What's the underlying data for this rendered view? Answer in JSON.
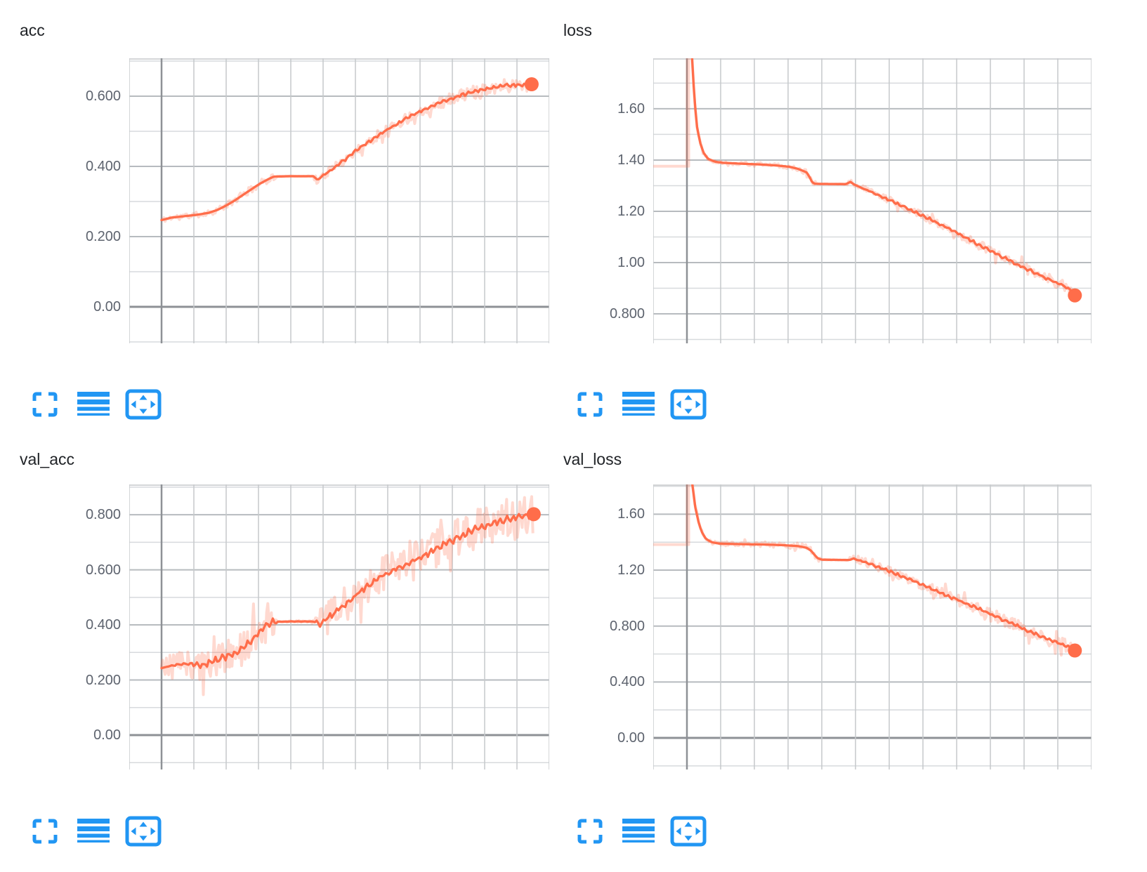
{
  "page": {
    "background": "#ffffff"
  },
  "accent": {
    "icon_blue": "#2196f3",
    "series_orange": "#ff6d4a"
  },
  "toolbar": {
    "icon_names": [
      "expand-card",
      "toggle-log-scale",
      "fit-domain-to-data"
    ]
  },
  "chart_data": [
    {
      "type": "line",
      "title": "acc",
      "color": "#ff6d4a",
      "legend": "smoothed line with faded raw series, end-point dot",
      "xlabel": "",
      "ylabel": "",
      "x_tick_labels_visible": false,
      "ylim": [
        -0.104,
        0.708
      ],
      "minor_step": 0.1,
      "major_step": 0.2,
      "yticks": [
        {
          "v": 0.6,
          "label": "0.600"
        },
        {
          "v": 0.4,
          "label": "0.400"
        },
        {
          "v": 0.2,
          "label": "0.200"
        },
        {
          "v": 0.0,
          "label": "0.00"
        }
      ],
      "axis_x_frac": 0.077,
      "flat_range": [
        0.35,
        0.44
      ],
      "end_dot_value": 0.634,
      "noise": [
        0.007,
        0.02
      ],
      "zig": 0.005,
      "zig_start": 0.42,
      "seed": 11,
      "points": [
        [
          0.077,
          0.247
        ],
        [
          0.1,
          0.254
        ],
        [
          0.13,
          0.258
        ],
        [
          0.16,
          0.262
        ],
        [
          0.19,
          0.268
        ],
        [
          0.21,
          0.276
        ],
        [
          0.23,
          0.288
        ],
        [
          0.25,
          0.302
        ],
        [
          0.27,
          0.318
        ],
        [
          0.29,
          0.334
        ],
        [
          0.31,
          0.35
        ],
        [
          0.33,
          0.363
        ],
        [
          0.344,
          0.371
        ],
        [
          0.38,
          0.372
        ],
        [
          0.42,
          0.372
        ],
        [
          0.44,
          0.372
        ],
        [
          0.447,
          0.361
        ],
        [
          0.46,
          0.372
        ],
        [
          0.48,
          0.39
        ],
        [
          0.5,
          0.408
        ],
        [
          0.52,
          0.426
        ],
        [
          0.54,
          0.444
        ],
        [
          0.56,
          0.462
        ],
        [
          0.58,
          0.478
        ],
        [
          0.6,
          0.494
        ],
        [
          0.62,
          0.509
        ],
        [
          0.64,
          0.523
        ],
        [
          0.66,
          0.536
        ],
        [
          0.68,
          0.549
        ],
        [
          0.7,
          0.56
        ],
        [
          0.72,
          0.571
        ],
        [
          0.74,
          0.581
        ],
        [
          0.76,
          0.59
        ],
        [
          0.78,
          0.599
        ],
        [
          0.8,
          0.606
        ],
        [
          0.82,
          0.613
        ],
        [
          0.84,
          0.619
        ],
        [
          0.86,
          0.624
        ],
        [
          0.88,
          0.628
        ],
        [
          0.9,
          0.63
        ],
        [
          0.92,
          0.632
        ],
        [
          0.94,
          0.633
        ],
        [
          0.958,
          0.634
        ]
      ]
    },
    {
      "type": "line",
      "title": "loss",
      "color": "#ff6d4a",
      "legend": "smoothed line with faded raw series, end-point dot",
      "xlabel": "",
      "ylabel": "",
      "x_tick_labels_visible": false,
      "ylim": [
        0.685,
        1.797
      ],
      "minor_step": 0.1,
      "major_step": 0.2,
      "yticks": [
        {
          "v": 1.6,
          "label": "1.60"
        },
        {
          "v": 1.4,
          "label": "1.40"
        },
        {
          "v": 1.2,
          "label": "1.20"
        },
        {
          "v": 1.0,
          "label": "1.00"
        },
        {
          "v": 0.8,
          "label": "0.800"
        }
      ],
      "axis_x_frac": 0.077,
      "flat_range": [
        0.375,
        0.443
      ],
      "raw_lead": 1.376,
      "end_dot_value": 0.872,
      "noise": [
        0.004,
        0.022
      ],
      "zig": 0.006,
      "zig_start": 0.46,
      "seed": 22,
      "points": [
        [
          0.077,
          1.95
        ],
        [
          0.082,
          1.95
        ],
        [
          0.088,
          1.82
        ],
        [
          0.094,
          1.64
        ],
        [
          0.1,
          1.53
        ],
        [
          0.107,
          1.468
        ],
        [
          0.115,
          1.428
        ],
        [
          0.125,
          1.405
        ],
        [
          0.14,
          1.394
        ],
        [
          0.16,
          1.389
        ],
        [
          0.2,
          1.386
        ],
        [
          0.24,
          1.383
        ],
        [
          0.28,
          1.379
        ],
        [
          0.31,
          1.374
        ],
        [
          0.33,
          1.366
        ],
        [
          0.35,
          1.352
        ],
        [
          0.358,
          1.33
        ],
        [
          0.363,
          1.312
        ],
        [
          0.37,
          1.307
        ],
        [
          0.44,
          1.306
        ],
        [
          0.45,
          1.315
        ],
        [
          0.457,
          1.306
        ],
        [
          0.48,
          1.288
        ],
        [
          0.51,
          1.266
        ],
        [
          0.54,
          1.243
        ],
        [
          0.57,
          1.22
        ],
        [
          0.6,
          1.195
        ],
        [
          0.63,
          1.17
        ],
        [
          0.66,
          1.145
        ],
        [
          0.69,
          1.118
        ],
        [
          0.72,
          1.09
        ],
        [
          0.75,
          1.063
        ],
        [
          0.78,
          1.036
        ],
        [
          0.81,
          1.01
        ],
        [
          0.84,
          0.985
        ],
        [
          0.87,
          0.96
        ],
        [
          0.9,
          0.937
        ],
        [
          0.92,
          0.922
        ],
        [
          0.94,
          0.905
        ],
        [
          0.955,
          0.89
        ],
        [
          0.962,
          0.872
        ]
      ]
    },
    {
      "type": "line",
      "title": "val_acc",
      "color": "#ff6d4a",
      "legend": "smoothed line with faded raw series, end-point dot",
      "xlabel": "",
      "ylabel": "",
      "x_tick_labels_visible": false,
      "ylim": [
        -0.125,
        0.91
      ],
      "minor_step": 0.1,
      "major_step": 0.2,
      "yticks": [
        {
          "v": 0.8,
          "label": "0.800"
        },
        {
          "v": 0.6,
          "label": "0.600"
        },
        {
          "v": 0.4,
          "label": "0.400"
        },
        {
          "v": 0.2,
          "label": "0.200"
        },
        {
          "v": 0.0,
          "label": "0.00"
        }
      ],
      "axis_x_frac": 0.077,
      "flat_range": [
        0.352,
        0.443
      ],
      "end_dot_value": 0.802,
      "noise": [
        0.055,
        0.075
      ],
      "zig": 0.013,
      "zig_start": 0.09,
      "seed": 33,
      "points": [
        [
          0.077,
          0.243
        ],
        [
          0.09,
          0.248
        ],
        [
          0.11,
          0.255
        ],
        [
          0.13,
          0.26
        ],
        [
          0.15,
          0.256
        ],
        [
          0.17,
          0.252
        ],
        [
          0.19,
          0.262
        ],
        [
          0.21,
          0.272
        ],
        [
          0.23,
          0.282
        ],
        [
          0.25,
          0.296
        ],
        [
          0.27,
          0.318
        ],
        [
          0.29,
          0.345
        ],
        [
          0.31,
          0.376
        ],
        [
          0.33,
          0.4
        ],
        [
          0.345,
          0.411
        ],
        [
          0.4,
          0.413
        ],
        [
          0.44,
          0.412
        ],
        [
          0.452,
          0.4
        ],
        [
          0.46,
          0.412
        ],
        [
          0.48,
          0.432
        ],
        [
          0.5,
          0.456
        ],
        [
          0.52,
          0.482
        ],
        [
          0.54,
          0.508
        ],
        [
          0.56,
          0.532
        ],
        [
          0.58,
          0.556
        ],
        [
          0.6,
          0.576
        ],
        [
          0.62,
          0.592
        ],
        [
          0.64,
          0.606
        ],
        [
          0.66,
          0.62
        ],
        [
          0.68,
          0.634
        ],
        [
          0.7,
          0.65
        ],
        [
          0.72,
          0.666
        ],
        [
          0.74,
          0.684
        ],
        [
          0.76,
          0.7
        ],
        [
          0.78,
          0.716
        ],
        [
          0.8,
          0.73
        ],
        [
          0.82,
          0.744
        ],
        [
          0.84,
          0.756
        ],
        [
          0.86,
          0.766
        ],
        [
          0.88,
          0.776
        ],
        [
          0.9,
          0.784
        ],
        [
          0.92,
          0.79
        ],
        [
          0.94,
          0.795
        ],
        [
          0.963,
          0.802
        ]
      ]
    },
    {
      "type": "line",
      "title": "val_loss",
      "color": "#ff6d4a",
      "legend": "smoothed line with faded raw series, end-point dot",
      "xlabel": "",
      "ylabel": "",
      "x_tick_labels_visible": false,
      "ylim": [
        -0.226,
        1.813
      ],
      "minor_step": 0.2,
      "major_step": 0.4,
      "yticks": [
        {
          "v": 1.6,
          "label": "1.60"
        },
        {
          "v": 1.2,
          "label": "1.20"
        },
        {
          "v": 0.8,
          "label": "0.800"
        },
        {
          "v": 0.4,
          "label": "0.400"
        },
        {
          "v": 0.0,
          "label": "0.00"
        }
      ],
      "axis_x_frac": 0.077,
      "flat_range": [
        0.385,
        0.448
      ],
      "raw_lead": 1.383,
      "end_dot_value": 0.625,
      "noise": [
        0.012,
        0.05
      ],
      "zig": 0.012,
      "zig_start": 0.44,
      "seed": 44,
      "points": [
        [
          0.077,
          1.95
        ],
        [
          0.083,
          1.95
        ],
        [
          0.09,
          1.8
        ],
        [
          0.096,
          1.65
        ],
        [
          0.103,
          1.55
        ],
        [
          0.11,
          1.478
        ],
        [
          0.12,
          1.425
        ],
        [
          0.133,
          1.4
        ],
        [
          0.15,
          1.39
        ],
        [
          0.18,
          1.387
        ],
        [
          0.22,
          1.385
        ],
        [
          0.26,
          1.383
        ],
        [
          0.3,
          1.378
        ],
        [
          0.33,
          1.372
        ],
        [
          0.35,
          1.36
        ],
        [
          0.36,
          1.34
        ],
        [
          0.368,
          1.31
        ],
        [
          0.375,
          1.285
        ],
        [
          0.385,
          1.275
        ],
        [
          0.445,
          1.272
        ],
        [
          0.457,
          1.282
        ],
        [
          0.468,
          1.272
        ],
        [
          0.49,
          1.25
        ],
        [
          0.52,
          1.215
        ],
        [
          0.55,
          1.178
        ],
        [
          0.58,
          1.14
        ],
        [
          0.61,
          1.1
        ],
        [
          0.64,
          1.06
        ],
        [
          0.67,
          1.02
        ],
        [
          0.7,
          0.98
        ],
        [
          0.73,
          0.94
        ],
        [
          0.76,
          0.9
        ],
        [
          0.79,
          0.858
        ],
        [
          0.82,
          0.815
        ],
        [
          0.85,
          0.775
        ],
        [
          0.88,
          0.735
        ],
        [
          0.9,
          0.71
        ],
        [
          0.92,
          0.685
        ],
        [
          0.94,
          0.66
        ],
        [
          0.955,
          0.64
        ],
        [
          0.962,
          0.625
        ]
      ]
    }
  ]
}
